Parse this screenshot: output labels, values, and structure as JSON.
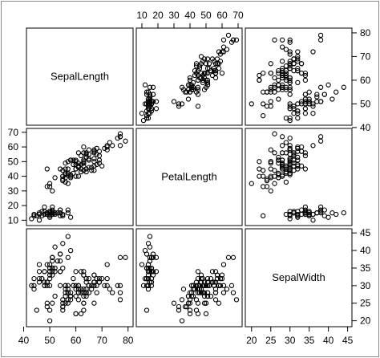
{
  "chart_data": {
    "type": "scatter",
    "layout": "scatterplot-matrix",
    "variables": [
      "SepalLength",
      "PetalLength",
      "SepalWidth"
    ],
    "axes": {
      "SepalLength": {
        "ticks": [
          40,
          50,
          60,
          70,
          80
        ],
        "range": [
          42,
          81
        ]
      },
      "PetalLength": {
        "ticks": [
          10,
          20,
          30,
          40,
          50,
          60,
          70
        ],
        "range": [
          8,
          71
        ]
      },
      "SepalWidth": {
        "ticks": [
          20,
          25,
          30,
          35,
          40,
          45
        ],
        "range": [
          19,
          45.5
        ]
      }
    },
    "tick_sides": {
      "SepalLength": [
        "bottom",
        "right"
      ],
      "PetalLength": [
        "top",
        "left"
      ],
      "SepalWidth": [
        "bottom",
        "right"
      ]
    },
    "observations": [
      [
        51,
        14,
        35
      ],
      [
        49,
        14,
        30
      ],
      [
        47,
        13,
        32
      ],
      [
        46,
        15,
        31
      ],
      [
        50,
        14,
        36
      ],
      [
        54,
        17,
        39
      ],
      [
        46,
        14,
        34
      ],
      [
        50,
        15,
        34
      ],
      [
        44,
        14,
        29
      ],
      [
        49,
        15,
        31
      ],
      [
        54,
        15,
        37
      ],
      [
        48,
        16,
        34
      ],
      [
        48,
        14,
        30
      ],
      [
        43,
        11,
        30
      ],
      [
        58,
        12,
        40
      ],
      [
        57,
        15,
        44
      ],
      [
        54,
        13,
        39
      ],
      [
        51,
        14,
        35
      ],
      [
        57,
        17,
        38
      ],
      [
        51,
        15,
        38
      ],
      [
        54,
        17,
        34
      ],
      [
        51,
        15,
        37
      ],
      [
        46,
        10,
        36
      ],
      [
        51,
        17,
        33
      ],
      [
        48,
        19,
        34
      ],
      [
        50,
        16,
        30
      ],
      [
        50,
        16,
        34
      ],
      [
        52,
        15,
        35
      ],
      [
        52,
        14,
        34
      ],
      [
        47,
        16,
        32
      ],
      [
        48,
        16,
        31
      ],
      [
        54,
        15,
        34
      ],
      [
        52,
        15,
        41
      ],
      [
        55,
        14,
        42
      ],
      [
        49,
        15,
        31
      ],
      [
        50,
        12,
        32
      ],
      [
        55,
        13,
        35
      ],
      [
        49,
        14,
        36
      ],
      [
        44,
        13,
        30
      ],
      [
        51,
        15,
        34
      ],
      [
        50,
        13,
        35
      ],
      [
        45,
        13,
        23
      ],
      [
        44,
        13,
        32
      ],
      [
        50,
        16,
        35
      ],
      [
        51,
        19,
        38
      ],
      [
        48,
        14,
        30
      ],
      [
        51,
        16,
        38
      ],
      [
        46,
        14,
        32
      ],
      [
        53,
        15,
        37
      ],
      [
        50,
        14,
        33
      ],
      [
        70,
        47,
        32
      ],
      [
        64,
        45,
        32
      ],
      [
        69,
        49,
        31
      ],
      [
        55,
        40,
        23
      ],
      [
        65,
        46,
        28
      ],
      [
        57,
        45,
        28
      ],
      [
        63,
        47,
        33
      ],
      [
        49,
        33,
        24
      ],
      [
        66,
        46,
        29
      ],
      [
        52,
        39,
        27
      ],
      [
        50,
        35,
        20
      ],
      [
        59,
        42,
        30
      ],
      [
        60,
        40,
        22
      ],
      [
        61,
        47,
        29
      ],
      [
        56,
        36,
        29
      ],
      [
        67,
        44,
        31
      ],
      [
        56,
        45,
        30
      ],
      [
        58,
        41,
        27
      ],
      [
        62,
        45,
        22
      ],
      [
        56,
        39,
        25
      ],
      [
        59,
        48,
        32
      ],
      [
        61,
        40,
        28
      ],
      [
        63,
        49,
        25
      ],
      [
        61,
        47,
        28
      ],
      [
        64,
        43,
        29
      ],
      [
        66,
        44,
        30
      ],
      [
        68,
        48,
        28
      ],
      [
        67,
        50,
        30
      ],
      [
        60,
        45,
        29
      ],
      [
        57,
        35,
        26
      ],
      [
        55,
        38,
        24
      ],
      [
        55,
        37,
        24
      ],
      [
        58,
        39,
        27
      ],
      [
        60,
        51,
        27
      ],
      [
        54,
        45,
        30
      ],
      [
        60,
        45,
        34
      ],
      [
        67,
        47,
        31
      ],
      [
        63,
        44,
        23
      ],
      [
        56,
        41,
        30
      ],
      [
        55,
        40,
        25
      ],
      [
        55,
        44,
        26
      ],
      [
        61,
        46,
        30
      ],
      [
        58,
        40,
        26
      ],
      [
        50,
        33,
        23
      ],
      [
        56,
        42,
        27
      ],
      [
        57,
        42,
        30
      ],
      [
        57,
        42,
        29
      ],
      [
        62,
        43,
        29
      ],
      [
        51,
        30,
        25
      ],
      [
        57,
        41,
        28
      ],
      [
        63,
        60,
        33
      ],
      [
        58,
        51,
        27
      ],
      [
        71,
        59,
        30
      ],
      [
        63,
        56,
        29
      ],
      [
        65,
        58,
        30
      ],
      [
        76,
        66,
        30
      ],
      [
        49,
        45,
        25
      ],
      [
        73,
        63,
        29
      ],
      [
        67,
        58,
        25
      ],
      [
        72,
        61,
        36
      ],
      [
        65,
        51,
        32
      ],
      [
        64,
        53,
        27
      ],
      [
        68,
        55,
        30
      ],
      [
        57,
        50,
        25
      ],
      [
        58,
        51,
        28
      ],
      [
        64,
        53,
        32
      ],
      [
        65,
        55,
        30
      ],
      [
        77,
        67,
        38
      ],
      [
        77,
        69,
        26
      ],
      [
        60,
        50,
        22
      ],
      [
        69,
        57,
        32
      ],
      [
        56,
        49,
        28
      ],
      [
        77,
        67,
        28
      ],
      [
        63,
        49,
        27
      ],
      [
        67,
        57,
        33
      ],
      [
        72,
        60,
        32
      ],
      [
        62,
        48,
        28
      ],
      [
        61,
        49,
        30
      ],
      [
        64,
        56,
        28
      ],
      [
        72,
        58,
        30
      ],
      [
        74,
        61,
        28
      ],
      [
        79,
        64,
        38
      ],
      [
        64,
        56,
        28
      ],
      [
        63,
        51,
        28
      ],
      [
        61,
        56,
        26
      ],
      [
        77,
        61,
        30
      ],
      [
        63,
        56,
        34
      ],
      [
        64,
        55,
        31
      ],
      [
        60,
        48,
        30
      ],
      [
        69,
        54,
        31
      ],
      [
        67,
        56,
        31
      ],
      [
        69,
        51,
        31
      ],
      [
        58,
        51,
        27
      ],
      [
        68,
        59,
        32
      ],
      [
        67,
        57,
        33
      ],
      [
        67,
        52,
        30
      ],
      [
        63,
        50,
        25
      ],
      [
        65,
        52,
        30
      ],
      [
        62,
        54,
        34
      ],
      [
        59,
        51,
        30
      ]
    ]
  }
}
